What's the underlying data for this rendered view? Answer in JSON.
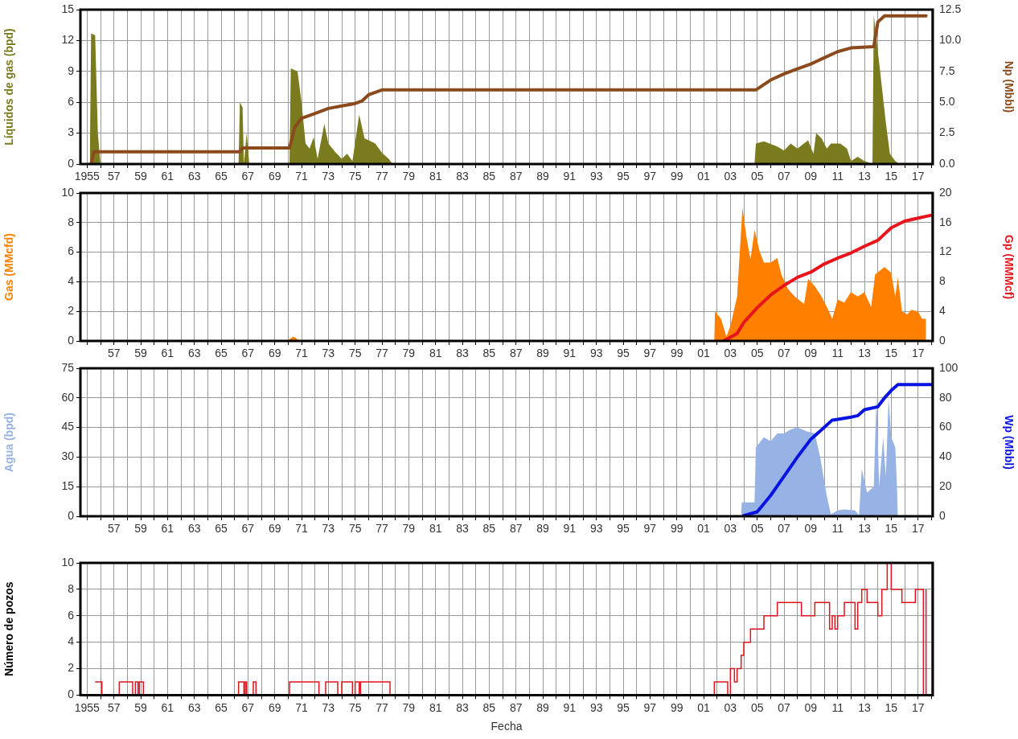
{
  "chart_data": [
    {
      "type": "area",
      "ylabel": "Líquidos de gas (bpd)",
      "y2label": "Np (Mbbl)",
      "grid": true,
      "xlim": [
        1954.5,
        2018.1
      ],
      "ylim": [
        0,
        15
      ],
      "yticks": [
        0,
        3,
        6,
        9,
        12,
        15
      ],
      "y2lim": [
        0,
        12.5
      ],
      "y2ticks": [
        {
          "value": 0,
          "label": "0.0"
        },
        {
          "value": 2.5,
          "label": "2.5"
        },
        {
          "value": 5,
          "label": "5.0"
        },
        {
          "value": 7.5,
          "label": "7.5"
        },
        {
          "value": 10,
          "label": "10.0"
        },
        {
          "value": 12.5,
          "label": "12.5"
        }
      ],
      "xticks": [
        {
          "value": 1955,
          "label": "1955"
        },
        {
          "value": 1956,
          "label": null
        },
        {
          "value": 1957,
          "label": "57"
        },
        {
          "value": 1958,
          "label": null
        },
        {
          "value": 1959,
          "label": "59"
        },
        {
          "value": 1960,
          "label": null
        },
        {
          "value": 1961,
          "label": "61"
        },
        {
          "value": 1962,
          "label": null
        },
        {
          "value": 1963,
          "label": "63"
        },
        {
          "value": 1964,
          "label": null
        },
        {
          "value": 1965,
          "label": "65"
        },
        {
          "value": 1966,
          "label": null
        },
        {
          "value": 1967,
          "label": "67"
        },
        {
          "value": 1968,
          "label": null
        },
        {
          "value": 1969,
          "label": "69"
        },
        {
          "value": 1970,
          "label": null
        },
        {
          "value": 1971,
          "label": "71"
        },
        {
          "value": 1972,
          "label": null
        },
        {
          "value": 1973,
          "label": "73"
        },
        {
          "value": 1974,
          "label": null
        },
        {
          "value": 1975,
          "label": "75"
        },
        {
          "value": 1976,
          "label": null
        },
        {
          "value": 1977,
          "label": "77"
        },
        {
          "value": 1978,
          "label": null
        },
        {
          "value": 1979,
          "label": "79"
        },
        {
          "value": 1980,
          "label": null
        },
        {
          "value": 1981,
          "label": "81"
        },
        {
          "value": 1982,
          "label": null
        },
        {
          "value": 1983,
          "label": "83"
        },
        {
          "value": 1984,
          "label": null
        },
        {
          "value": 1985,
          "label": "85"
        },
        {
          "value": 1986,
          "label": null
        },
        {
          "value": 1987,
          "label": "87"
        },
        {
          "value": 1988,
          "label": null
        },
        {
          "value": 1989,
          "label": "89"
        },
        {
          "value": 1990,
          "label": null
        },
        {
          "value": 1991,
          "label": "91"
        },
        {
          "value": 1992,
          "label": null
        },
        {
          "value": 1993,
          "label": "93"
        },
        {
          "value": 1994,
          "label": null
        },
        {
          "value": 1995,
          "label": "95"
        },
        {
          "value": 1996,
          "label": null
        },
        {
          "value": 1997,
          "label": "97"
        },
        {
          "value": 1998,
          "label": null
        },
        {
          "value": 1999,
          "label": "99"
        },
        {
          "value": 2000,
          "label": null
        },
        {
          "value": 2001,
          "label": "01"
        },
        {
          "value": 2002,
          "label": null
        },
        {
          "value": 2003,
          "label": "03"
        },
        {
          "value": 2004,
          "label": null
        },
        {
          "value": 2005,
          "label": "05"
        },
        {
          "value": 2006,
          "label": null
        },
        {
          "value": 2007,
          "label": "07"
        },
        {
          "value": 2008,
          "label": null
        },
        {
          "value": 2009,
          "label": "09"
        },
        {
          "value": 2010,
          "label": null
        },
        {
          "value": 2011,
          "label": "11"
        },
        {
          "value": 2012,
          "label": null
        },
        {
          "value": 2013,
          "label": "13"
        },
        {
          "value": 2014,
          "label": null
        },
        {
          "value": 2015,
          "label": "15"
        },
        {
          "value": 2016,
          "label": null
        },
        {
          "value": 2017,
          "label": "17"
        },
        {
          "value": 2018,
          "label": null
        }
      ],
      "series": [
        {
          "color": "#7a7a1e",
          "x": [
            1955.2,
            1955.3,
            1955.6,
            1955.8,
            1956,
            1966.3,
            1966.4,
            1966.6,
            1966.7,
            1966.9,
            1967.1,
            1970.1,
            1970.2,
            1970.7,
            1971,
            1971.3,
            1971.6,
            1971.9,
            1972.2,
            1972.7,
            1973,
            1973.5,
            1974,
            1974.4,
            1974.8,
            1975.3,
            1975.7,
            1976.5,
            1977,
            1977.5,
            1977.8,
            2004.8,
            2004.9,
            2005.5,
            2006.5,
            2007,
            2007.5,
            2008,
            2008.8,
            2009.2,
            2009.4,
            2009.8,
            2010.2,
            2010.5,
            2011.2,
            2011.7,
            2012,
            2012.5,
            2013,
            2013.6,
            2013.7,
            2014,
            2014.3,
            2014.6,
            2014.9,
            2015.3,
            2015.6
          ],
          "values": [
            0,
            12.7,
            12.5,
            3,
            0,
            0,
            6,
            5.5,
            0,
            3,
            0,
            0,
            9.3,
            9,
            6,
            2,
            1.5,
            2.6,
            0.5,
            3.9,
            2,
            1.2,
            0.5,
            1,
            0.3,
            4.8,
            2.5,
            2,
            1.1,
            0.5,
            0,
            0,
            2,
            2.2,
            1.7,
            1.3,
            2,
            1.5,
            2.3,
            1,
            3,
            2.5,
            1.5,
            2,
            2,
            1.5,
            0.3,
            0.7,
            0.3,
            0,
            14.5,
            11,
            7.5,
            4,
            1,
            0.3,
            0
          ]
        },
        {
          "type": "line",
          "axis": "y2",
          "color": "#8b4a1c",
          "x": [
            1955.3,
            1955.5,
            1966.4,
            1966.6,
            1970.1,
            1970.5,
            1971,
            1972,
            1973,
            1974,
            1975,
            1975.5,
            1976,
            1977,
            2004.9,
            2006,
            2007,
            2008,
            2009,
            2010,
            2011,
            2012,
            2013.7,
            2014,
            2014.5,
            2017.6
          ],
          "values": [
            0,
            1,
            1,
            1.3,
            1.3,
            3,
            3.7,
            4.1,
            4.5,
            4.7,
            4.9,
            5.1,
            5.6,
            6,
            6,
            6.8,
            7.3,
            7.7,
            8.1,
            8.6,
            9.1,
            9.4,
            9.5,
            11.5,
            12,
            12
          ]
        }
      ]
    },
    {
      "type": "area",
      "ylabel": "Gas (MMcfd)",
      "y2label": "Gp (MMMcf)",
      "grid": true,
      "xlim": [
        1954.5,
        2018.1
      ],
      "ylim": [
        0,
        10
      ],
      "yticks": [
        0,
        2,
        4,
        6,
        8,
        10
      ],
      "y2lim": [
        0,
        20
      ],
      "y2ticks": [
        0,
        4,
        8,
        12,
        16,
        20
      ],
      "xticks": [
        {
          "value": 1955,
          "label": null
        },
        {
          "value": 1956,
          "label": null
        },
        {
          "value": 1957,
          "label": "57"
        },
        {
          "value": 1958,
          "label": null
        },
        {
          "value": 1959,
          "label": "59"
        },
        {
          "value": 1960,
          "label": null
        },
        {
          "value": 1961,
          "label": "61"
        },
        {
          "value": 1962,
          "label": null
        },
        {
          "value": 1963,
          "label": "63"
        },
        {
          "value": 1964,
          "label": null
        },
        {
          "value": 1965,
          "label": "65"
        },
        {
          "value": 1966,
          "label": null
        },
        {
          "value": 1967,
          "label": "67"
        },
        {
          "value": 1968,
          "label": null
        },
        {
          "value": 1969,
          "label": "69"
        },
        {
          "value": 1970,
          "label": null
        },
        {
          "value": 1971,
          "label": "71"
        },
        {
          "value": 1972,
          "label": null
        },
        {
          "value": 1973,
          "label": "73"
        },
        {
          "value": 1974,
          "label": null
        },
        {
          "value": 1975,
          "label": "75"
        },
        {
          "value": 1976,
          "label": null
        },
        {
          "value": 1977,
          "label": "77"
        },
        {
          "value": 1978,
          "label": null
        },
        {
          "value": 1979,
          "label": "79"
        },
        {
          "value": 1980,
          "label": null
        },
        {
          "value": 1981,
          "label": "81"
        },
        {
          "value": 1982,
          "label": null
        },
        {
          "value": 1983,
          "label": "83"
        },
        {
          "value": 1984,
          "label": null
        },
        {
          "value": 1985,
          "label": "85"
        },
        {
          "value": 1986,
          "label": null
        },
        {
          "value": 1987,
          "label": "87"
        },
        {
          "value": 1988,
          "label": null
        },
        {
          "value": 1989,
          "label": "89"
        },
        {
          "value": 1990,
          "label": null
        },
        {
          "value": 1991,
          "label": "91"
        },
        {
          "value": 1992,
          "label": null
        },
        {
          "value": 1993,
          "label": "93"
        },
        {
          "value": 1994,
          "label": null
        },
        {
          "value": 1995,
          "label": "95"
        },
        {
          "value": 1996,
          "label": null
        },
        {
          "value": 1997,
          "label": "97"
        },
        {
          "value": 1998,
          "label": null
        },
        {
          "value": 1999,
          "label": "99"
        },
        {
          "value": 2000,
          "label": null
        },
        {
          "value": 2001,
          "label": "01"
        },
        {
          "value": 2002,
          "label": null
        },
        {
          "value": 2003,
          "label": "03"
        },
        {
          "value": 2004,
          "label": null
        },
        {
          "value": 2005,
          "label": "05"
        },
        {
          "value": 2006,
          "label": null
        },
        {
          "value": 2007,
          "label": "07"
        },
        {
          "value": 2008,
          "label": null
        },
        {
          "value": 2009,
          "label": "09"
        },
        {
          "value": 2010,
          "label": null
        },
        {
          "value": 2011,
          "label": "11"
        },
        {
          "value": 2012,
          "label": null
        },
        {
          "value": 2013,
          "label": "13"
        },
        {
          "value": 2014,
          "label": null
        },
        {
          "value": 2015,
          "label": "15"
        },
        {
          "value": 2016,
          "label": null
        },
        {
          "value": 2017,
          "label": "17"
        },
        {
          "value": 2018,
          "label": null
        }
      ],
      "series": [
        {
          "color": "#ff8000",
          "x": [
            1966.5,
            1970,
            1970.4,
            1970.8,
            2001.8,
            2001.85,
            2002.3,
            2002.7,
            2003,
            2003.5,
            2003.9,
            2004.2,
            2004.5,
            2004.8,
            2005.2,
            2005.5,
            2006,
            2006.5,
            2006.8,
            2007.3,
            2007.8,
            2008.5,
            2008.8,
            2009.3,
            2009.8,
            2010.2,
            2010.6,
            2011,
            2011.5,
            2012,
            2012.5,
            2013,
            2013.5,
            2013.8,
            2014.5,
            2015,
            2015.3,
            2015.5,
            2015.8,
            2016.2,
            2016.5,
            2017,
            2017.3,
            2017.6
          ],
          "values": [
            0.05,
            0.05,
            0.3,
            0.05,
            0,
            2,
            1.5,
            0.3,
            1,
            3,
            9,
            7,
            5.5,
            7.5,
            6,
            5.3,
            5.3,
            5.6,
            4.5,
            3.5,
            3,
            2.5,
            4.2,
            3.7,
            3,
            2.3,
            1.5,
            2.8,
            2.6,
            3.3,
            3,
            3.3,
            2.3,
            4.5,
            5,
            4.6,
            3,
            4.3,
            2,
            1.8,
            2.1,
            2,
            1.5,
            1.5
          ]
        },
        {
          "type": "line",
          "axis": "y2",
          "color": "#e8141c",
          "x": [
            2002.5,
            2003.5,
            2004,
            2005,
            2006,
            2007,
            2008,
            2009,
            2010,
            2011,
            2012,
            2013,
            2014,
            2015,
            2016,
            2017,
            2018
          ],
          "values": [
            0,
            1,
            2.5,
            4.5,
            6.2,
            7.5,
            8.6,
            9.3,
            10.4,
            11.2,
            11.9,
            12.8,
            13.6,
            15.3,
            16.2,
            16.6,
            17
          ]
        }
      ]
    },
    {
      "type": "area",
      "ylabel": "Agua (bpd)",
      "y2label": "Wp (Mbbl)",
      "grid": true,
      "xlim": [
        1954.5,
        2018.1
      ],
      "ylim": [
        0,
        75
      ],
      "yticks": [
        0,
        15,
        30,
        45,
        60,
        75
      ],
      "y2lim": [
        0,
        100
      ],
      "y2ticks": [
        0,
        20,
        40,
        60,
        80,
        100
      ],
      "xticks": [
        {
          "value": 1955,
          "label": null
        },
        {
          "value": 1956,
          "label": null
        },
        {
          "value": 1957,
          "label": "57"
        },
        {
          "value": 1958,
          "label": null
        },
        {
          "value": 1959,
          "label": "59"
        },
        {
          "value": 1960,
          "label": null
        },
        {
          "value": 1961,
          "label": "61"
        },
        {
          "value": 1962,
          "label": null
        },
        {
          "value": 1963,
          "label": "63"
        },
        {
          "value": 1964,
          "label": null
        },
        {
          "value": 1965,
          "label": "65"
        },
        {
          "value": 1966,
          "label": null
        },
        {
          "value": 1967,
          "label": "67"
        },
        {
          "value": 1968,
          "label": null
        },
        {
          "value": 1969,
          "label": "69"
        },
        {
          "value": 1970,
          "label": null
        },
        {
          "value": 1971,
          "label": "71"
        },
        {
          "value": 1972,
          "label": null
        },
        {
          "value": 1973,
          "label": "73"
        },
        {
          "value": 1974,
          "label": null
        },
        {
          "value": 1975,
          "label": "75"
        },
        {
          "value": 1976,
          "label": null
        },
        {
          "value": 1977,
          "label": "77"
        },
        {
          "value": 1978,
          "label": null
        },
        {
          "value": 1979,
          "label": "79"
        },
        {
          "value": 1980,
          "label": null
        },
        {
          "value": 1981,
          "label": "81"
        },
        {
          "value": 1982,
          "label": null
        },
        {
          "value": 1983,
          "label": "83"
        },
        {
          "value": 1984,
          "label": null
        },
        {
          "value": 1985,
          "label": "85"
        },
        {
          "value": 1986,
          "label": null
        },
        {
          "value": 1987,
          "label": "87"
        },
        {
          "value": 1988,
          "label": null
        },
        {
          "value": 1989,
          "label": "89"
        },
        {
          "value": 1990,
          "label": null
        },
        {
          "value": 1991,
          "label": "91"
        },
        {
          "value": 1992,
          "label": null
        },
        {
          "value": 1993,
          "label": "93"
        },
        {
          "value": 1994,
          "label": null
        },
        {
          "value": 1995,
          "label": "95"
        },
        {
          "value": 1996,
          "label": null
        },
        {
          "value": 1997,
          "label": "97"
        },
        {
          "value": 1998,
          "label": null
        },
        {
          "value": 1999,
          "label": "99"
        },
        {
          "value": 2000,
          "label": null
        },
        {
          "value": 2001,
          "label": "01"
        },
        {
          "value": 2002,
          "label": null
        },
        {
          "value": 2003,
          "label": "03"
        },
        {
          "value": 2004,
          "label": null
        },
        {
          "value": 2005,
          "label": "05"
        },
        {
          "value": 2006,
          "label": null
        },
        {
          "value": 2007,
          "label": "07"
        },
        {
          "value": 2008,
          "label": null
        },
        {
          "value": 2009,
          "label": "09"
        },
        {
          "value": 2010,
          "label": null
        },
        {
          "value": 2011,
          "label": "11"
        },
        {
          "value": 2012,
          "label": null
        },
        {
          "value": 2013,
          "label": "13"
        },
        {
          "value": 2014,
          "label": null
        },
        {
          "value": 2015,
          "label": "15"
        },
        {
          "value": 2016,
          "label": null
        },
        {
          "value": 2017,
          "label": "17"
        },
        {
          "value": 2018,
          "label": null
        }
      ],
      "series": [
        {
          "color": "#97b3e6",
          "x": [
            2003.8,
            2003.85,
            2004.8,
            2004.9,
            2005.5,
            2006,
            2006.5,
            2007,
            2007.5,
            2008,
            2008.7,
            2009.3,
            2009.7,
            2010.2,
            2010.5,
            2011,
            2011.5,
            2012.3,
            2012.6,
            2012.8,
            2013.2,
            2013.7,
            2013.9,
            2014.1,
            2014.4,
            2014.6,
            2014.8,
            2015,
            2015.3,
            2015.4,
            2015.5
          ],
          "values": [
            0,
            7,
            7,
            35,
            40,
            38,
            42,
            42,
            44,
            45,
            43,
            42,
            30,
            10,
            1,
            3,
            3.5,
            3,
            0.5,
            24,
            12,
            15,
            62,
            15,
            40,
            20,
            60,
            40,
            35,
            20,
            0
          ]
        },
        {
          "type": "line",
          "axis": "y2",
          "color": "#0a14e0",
          "x": [
            2004,
            2005,
            2006,
            2007,
            2008,
            2009,
            2010,
            2010.6,
            2011,
            2012,
            2012.5,
            2013,
            2014,
            2014.5,
            2015,
            2015.5,
            2018
          ],
          "values": [
            0.5,
            3,
            14,
            27,
            40,
            52,
            60,
            65,
            65.5,
            67,
            68,
            72,
            74,
            80,
            85,
            89,
            89
          ]
        }
      ]
    },
    {
      "type": "step",
      "ylabel": "Número de pozos",
      "xlabel": "Fecha",
      "grid": true,
      "xlim": [
        1954.5,
        2018.1
      ],
      "ylim": [
        0,
        10
      ],
      "yticks": [
        0,
        2,
        4,
        6,
        8,
        10
      ],
      "xticks": [
        {
          "value": 1955,
          "label": "1955"
        },
        {
          "value": 1956,
          "label": null
        },
        {
          "value": 1957,
          "label": "57"
        },
        {
          "value": 1958,
          "label": null
        },
        {
          "value": 1959,
          "label": "59"
        },
        {
          "value": 1960,
          "label": null
        },
        {
          "value": 1961,
          "label": "61"
        },
        {
          "value": 1962,
          "label": null
        },
        {
          "value": 1963,
          "label": "63"
        },
        {
          "value": 1964,
          "label": null
        },
        {
          "value": 1965,
          "label": "65"
        },
        {
          "value": 1966,
          "label": null
        },
        {
          "value": 1967,
          "label": "67"
        },
        {
          "value": 1968,
          "label": null
        },
        {
          "value": 1969,
          "label": "69"
        },
        {
          "value": 1970,
          "label": null
        },
        {
          "value": 1971,
          "label": "71"
        },
        {
          "value": 1972,
          "label": null
        },
        {
          "value": 1973,
          "label": "73"
        },
        {
          "value": 1974,
          "label": null
        },
        {
          "value": 1975,
          "label": "75"
        },
        {
          "value": 1976,
          "label": null
        },
        {
          "value": 1977,
          "label": "77"
        },
        {
          "value": 1978,
          "label": null
        },
        {
          "value": 1979,
          "label": "79"
        },
        {
          "value": 1980,
          "label": null
        },
        {
          "value": 1981,
          "label": "81"
        },
        {
          "value": 1982,
          "label": null
        },
        {
          "value": 1983,
          "label": "83"
        },
        {
          "value": 1984,
          "label": null
        },
        {
          "value": 1985,
          "label": "85"
        },
        {
          "value": 1986,
          "label": null
        },
        {
          "value": 1987,
          "label": "87"
        },
        {
          "value": 1988,
          "label": null
        },
        {
          "value": 1989,
          "label": "89"
        },
        {
          "value": 1990,
          "label": null
        },
        {
          "value": 1991,
          "label": "91"
        },
        {
          "value": 1992,
          "label": null
        },
        {
          "value": 1993,
          "label": "93"
        },
        {
          "value": 1994,
          "label": null
        },
        {
          "value": 1995,
          "label": "95"
        },
        {
          "value": 1996,
          "label": null
        },
        {
          "value": 1997,
          "label": "97"
        },
        {
          "value": 1998,
          "label": null
        },
        {
          "value": 1999,
          "label": "99"
        },
        {
          "value": 2000,
          "label": null
        },
        {
          "value": 2001,
          "label": "01"
        },
        {
          "value": 2002,
          "label": null
        },
        {
          "value": 2003,
          "label": "03"
        },
        {
          "value": 2004,
          "label": null
        },
        {
          "value": 2005,
          "label": "05"
        },
        {
          "value": 2006,
          "label": null
        },
        {
          "value": 2007,
          "label": "07"
        },
        {
          "value": 2008,
          "label": null
        },
        {
          "value": 2009,
          "label": "09"
        },
        {
          "value": 2010,
          "label": null
        },
        {
          "value": 2011,
          "label": "11"
        },
        {
          "value": 2012,
          "label": null
        },
        {
          "value": 2013,
          "label": "13"
        },
        {
          "value": 2014,
          "label": null
        },
        {
          "value": 2015,
          "label": "15"
        },
        {
          "value": 2016,
          "label": null
        },
        {
          "value": 2017,
          "label": "17"
        },
        {
          "value": 2018,
          "label": null
        }
      ],
      "series": [
        {
          "color": "#e0141c",
          "x": [
            1955.6,
            1956.1,
            1957.4,
            1958.4,
            1958.6,
            1958.8,
            1958.9,
            1959.2,
            1966.3,
            1966.7,
            1966.8,
            1966.9,
            1967.4,
            1967.6,
            1970.1,
            1972.3,
            1972.8,
            1973.7,
            1974,
            1974.8,
            1975,
            1975.3,
            1975.4,
            1977.6,
            2001.8,
            2002.8,
            2003,
            2003.3,
            2003.5,
            2003.8,
            2004,
            2004.5,
            2005.5,
            2006.5,
            2008.3,
            2009.3,
            2010.4,
            2010.6,
            2010.8,
            2011,
            2011.5,
            2012.3,
            2012.5,
            2012.8,
            2013.2,
            2014,
            2014.3,
            2014.7,
            2015,
            2015.8,
            2016.8,
            2017.4,
            2017.6
          ],
          "values": [
            1,
            0,
            1,
            0,
            1,
            0,
            1,
            0,
            1,
            0,
            1,
            0,
            1,
            0,
            1,
            0,
            1,
            0,
            1,
            0,
            1,
            0,
            1,
            0,
            1,
            0,
            2,
            1,
            2,
            3,
            4,
            5,
            6,
            7,
            6,
            7,
            5,
            6,
            5,
            6,
            7,
            5,
            7,
            8,
            7,
            6,
            8,
            10,
            8,
            7,
            8,
            0,
            8
          ]
        }
      ]
    }
  ]
}
